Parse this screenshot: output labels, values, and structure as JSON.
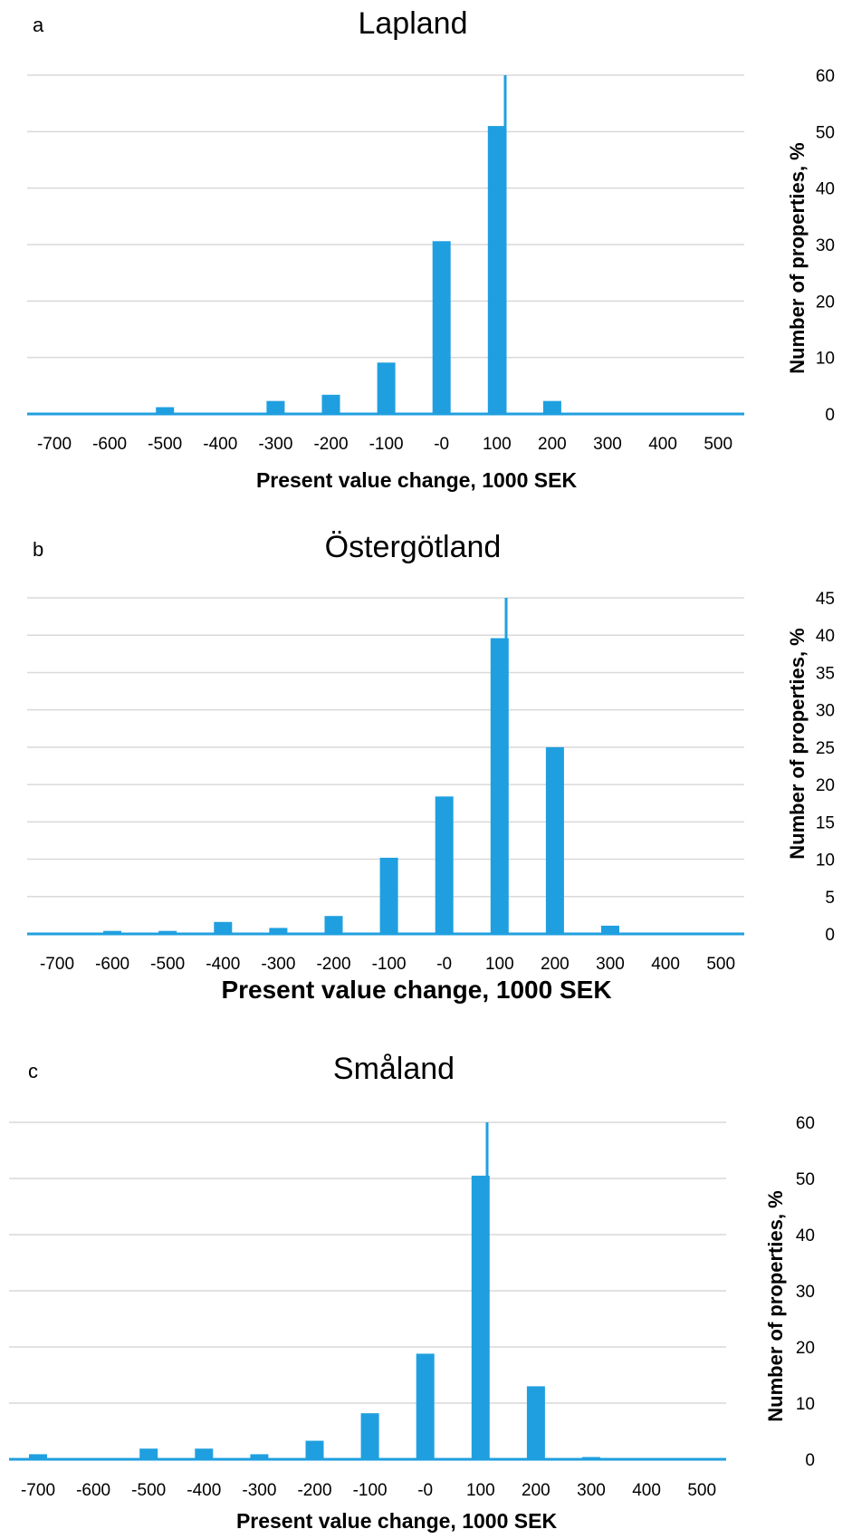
{
  "chart_data": [
    {
      "type": "bar",
      "panel": "a",
      "title": "Lapland",
      "xlabel": "Present value change, 1000 SEK",
      "ylabel": "Number of properties, %",
      "categories": [
        "-700",
        "-600",
        "-500",
        "-400",
        "-300",
        "-200",
        "-100",
        "-0",
        "100",
        "200",
        "300",
        "400",
        "500"
      ],
      "values": [
        0,
        0,
        1.2,
        0,
        2.3,
        3.4,
        9.1,
        30.6,
        51,
        2.3,
        0,
        0,
        0
      ],
      "yticks": [
        "0",
        "10",
        "20",
        "30",
        "40",
        "50",
        "60"
      ],
      "ylim": [
        0,
        60
      ],
      "ystep": 10,
      "grid": true,
      "legend": "none",
      "reference_line_x": "between -0 and 100",
      "color": "#1f9fdf"
    },
    {
      "type": "bar",
      "panel": "b",
      "title": "Östergötland",
      "xlabel": "Present value change, 1000 SEK",
      "ylabel": "Number of properties, %",
      "categories": [
        "-700",
        "-600",
        "-500",
        "-400",
        "-300",
        "-200",
        "-100",
        "-0",
        "100",
        "200",
        "300",
        "400",
        "500"
      ],
      "values": [
        0,
        0.4,
        0.4,
        1.6,
        0.8,
        2.4,
        10.2,
        18.4,
        39.6,
        25,
        1.1,
        0,
        0
      ],
      "yticks": [
        "0",
        "5",
        "10",
        "15",
        "20",
        "25",
        "30",
        "35",
        "40",
        "45"
      ],
      "ylim": [
        0,
        45
      ],
      "ystep": 5,
      "grid": true,
      "legend": "none",
      "reference_line_x": "between -0 and 100",
      "color": "#1f9fdf"
    },
    {
      "type": "bar",
      "panel": "c",
      "title": "Småland",
      "xlabel": "Present value change, 1000 SEK",
      "ylabel": "Number of properties, %",
      "categories": [
        "-700",
        "-600",
        "-500",
        "-400",
        "-300",
        "-200",
        "-100",
        "-0",
        "100",
        "200",
        "300",
        "400",
        "500"
      ],
      "values": [
        0.9,
        0,
        1.9,
        1.9,
        0.9,
        3.3,
        8.2,
        18.8,
        50.5,
        13,
        0.4,
        0,
        0
      ],
      "yticks": [
        "0",
        "10",
        "20",
        "30",
        "40",
        "50",
        "60"
      ],
      "ylim": [
        0,
        60
      ],
      "ystep": 10,
      "grid": true,
      "legend": "none",
      "reference_line_x": "between -0 and 100",
      "color": "#1f9fdf"
    }
  ]
}
